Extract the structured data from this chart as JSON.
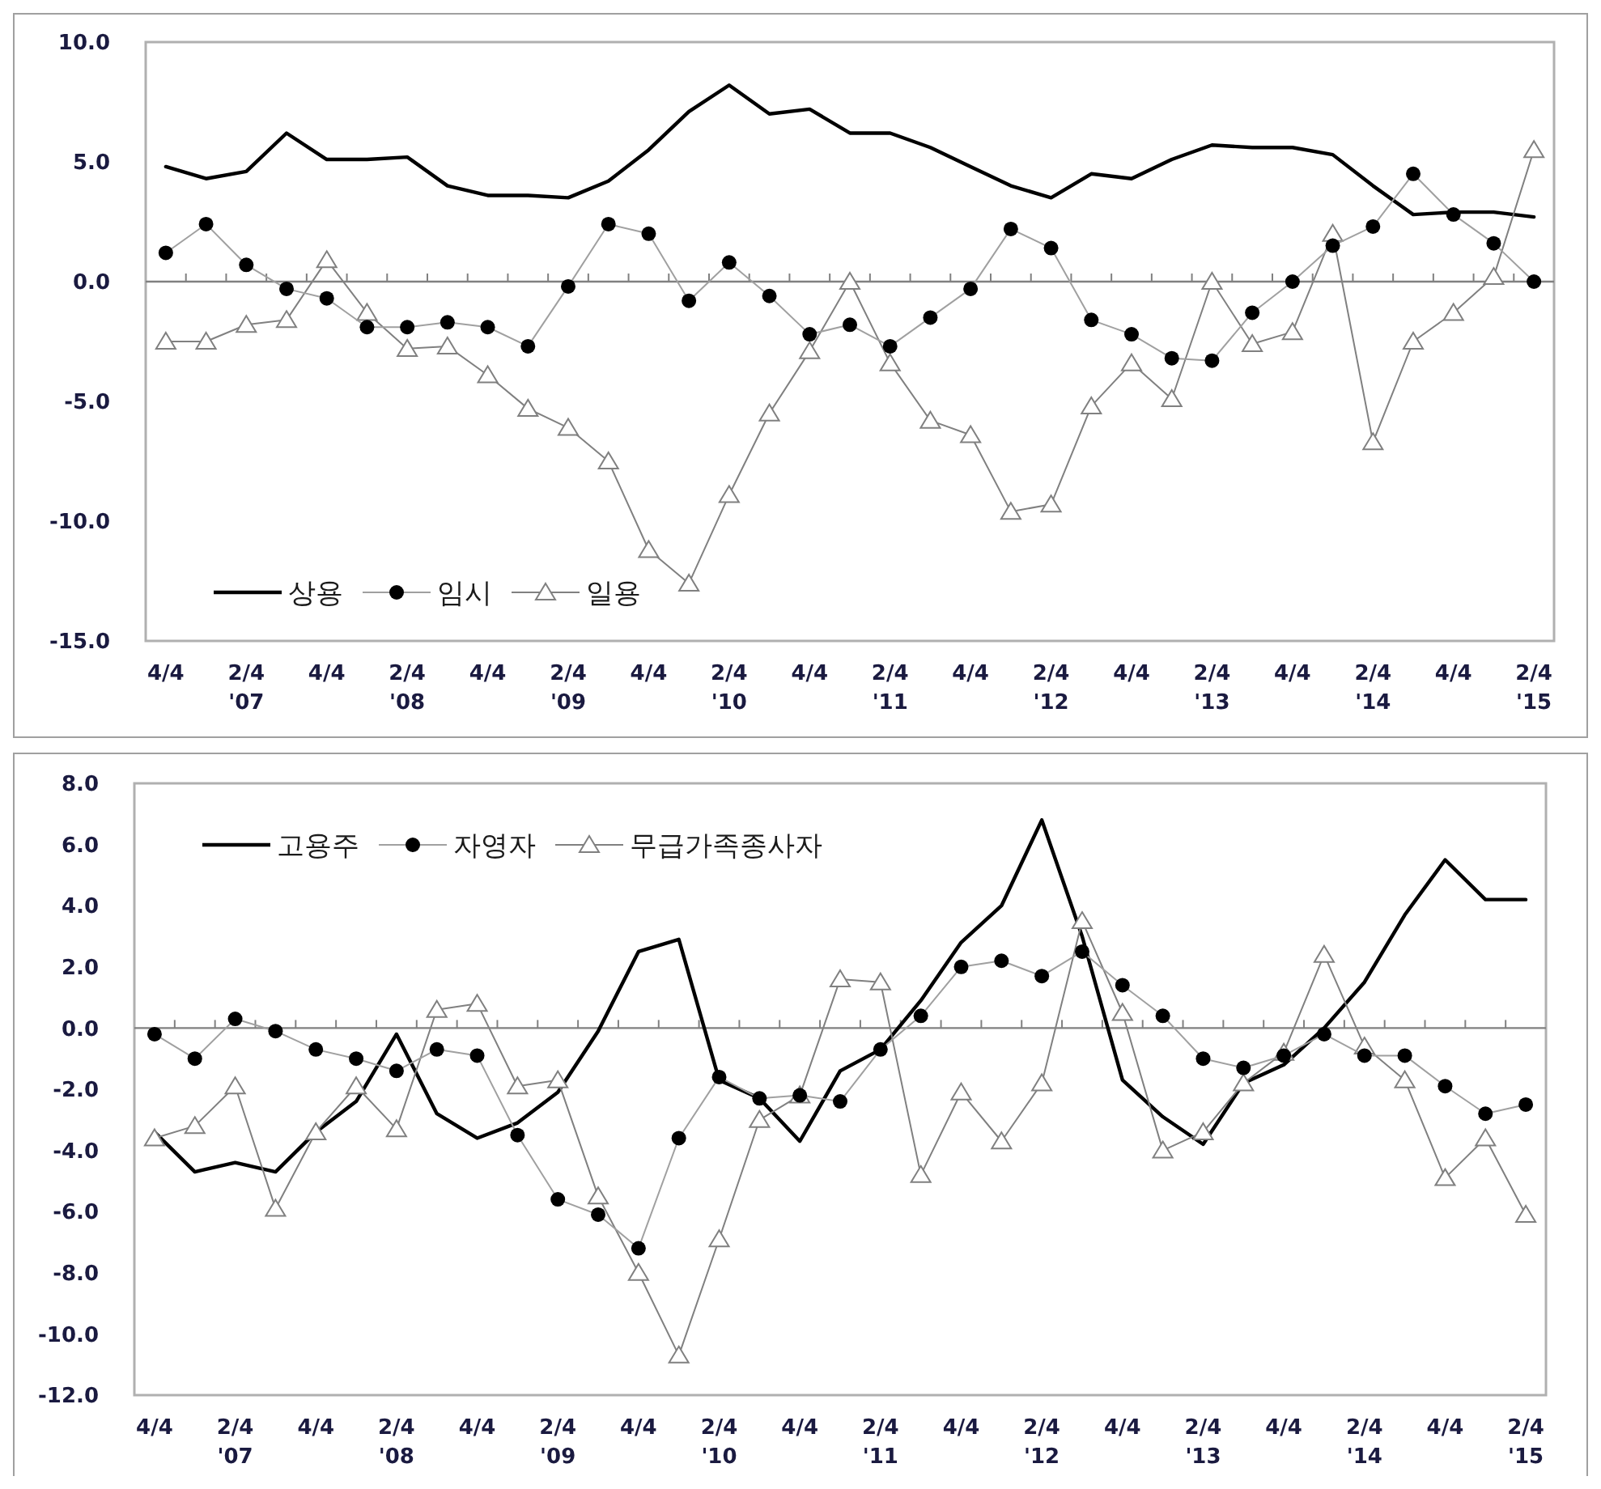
{
  "chart_data": [
    {
      "type": "line",
      "categories": [
        "4/4",
        null,
        "2/4\n'07",
        null,
        "4/4",
        null,
        "2/4\n'08",
        null,
        "4/4",
        null,
        "2/4\n'09",
        null,
        "4/4",
        null,
        "2/4\n'10",
        null,
        "4/4",
        null,
        "2/4\n'11",
        null,
        "4/4",
        null,
        "2/4\n'12",
        null,
        "4/4",
        null,
        "2/4\n'13",
        null,
        "4/4",
        null,
        "2/4\n'14",
        null,
        "4/4",
        null,
        "2/4\n'15"
      ],
      "ylim": [
        -15,
        10
      ],
      "yticks": [
        {
          "value": -15,
          "label": "-15.0"
        },
        {
          "value": -10,
          "label": "-10.0"
        },
        {
          "value": -5,
          "label": "-5.0"
        },
        {
          "value": 0,
          "label": "0.0"
        },
        {
          "value": 5,
          "label": "5.0"
        },
        {
          "value": 10,
          "label": "10.0"
        }
      ],
      "grid": false,
      "legend": "bottom left",
      "ref_lines": [
        {
          "axis": "y",
          "value": 0
        }
      ],
      "series": [
        {
          "name": "상용",
          "color": "#000000",
          "marker": "none",
          "values": [
            4.8,
            4.3,
            4.6,
            6.2,
            5.1,
            5.1,
            5.2,
            4.0,
            3.6,
            3.6,
            3.5,
            4.2,
            5.5,
            7.1,
            8.2,
            7.0,
            7.2,
            6.2,
            6.2,
            5.6,
            4.8,
            4.0,
            3.5,
            4.5,
            4.3,
            5.1,
            5.7,
            5.6,
            5.6,
            5.3,
            4.0,
            2.8,
            2.9,
            2.9,
            2.7
          ]
        },
        {
          "name": "임시",
          "color": "#000000",
          "marker": "circle",
          "values": [
            1.2,
            2.4,
            0.7,
            -0.3,
            -0.7,
            -1.9,
            -1.9,
            -1.7,
            -1.9,
            -2.7,
            -0.2,
            2.4,
            2.0,
            -0.8,
            0.8,
            -0.6,
            -2.2,
            -1.8,
            -2.7,
            -1.5,
            -0.3,
            2.2,
            1.4,
            -1.6,
            -2.2,
            -3.2,
            -3.3,
            -1.3,
            0.0,
            1.5,
            2.3,
            4.5,
            2.8,
            1.6,
            0.0
          ]
        },
        {
          "name": "일용",
          "color": "#808080",
          "marker": "triangle",
          "values": [
            -2.5,
            -2.5,
            -1.8,
            -1.6,
            0.9,
            -1.3,
            -2.8,
            -2.7,
            -3.9,
            -5.3,
            -6.1,
            -7.5,
            -11.2,
            -12.6,
            -8.9,
            -5.5,
            -2.9,
            0.0,
            -3.4,
            -5.8,
            -6.4,
            -9.6,
            -9.3,
            -5.2,
            -3.4,
            -4.9,
            0.0,
            -2.6,
            -2.1,
            2.0,
            -6.7,
            -2.5,
            -1.3,
            0.2,
            5.5
          ]
        }
      ]
    },
    {
      "type": "line",
      "categories": [
        "4/4",
        null,
        "2/4\n'07",
        null,
        "4/4",
        null,
        "2/4\n'08",
        null,
        "4/4",
        null,
        "2/4\n'09",
        null,
        "4/4",
        null,
        "2/4\n'10",
        null,
        "4/4",
        null,
        "2/4\n'11",
        null,
        "4/4",
        null,
        "2/4\n'12",
        null,
        "4/4",
        null,
        "2/4\n'13",
        null,
        "4/4",
        null,
        "2/4\n'14",
        null,
        "4/4",
        null,
        "2/4\n'15"
      ],
      "ylim": [
        -12,
        8
      ],
      "yticks": [
        {
          "value": -12,
          "label": "-12.0"
        },
        {
          "value": -10,
          "label": "-10.0"
        },
        {
          "value": -8,
          "label": "-8.0"
        },
        {
          "value": -6,
          "label": "-6.0"
        },
        {
          "value": -4,
          "label": "-4.0"
        },
        {
          "value": -2,
          "label": "-2.0"
        },
        {
          "value": 0,
          "label": "0.0"
        },
        {
          "value": 2,
          "label": "2.0"
        },
        {
          "value": 4,
          "label": "4.0"
        },
        {
          "value": 6,
          "label": "6.0"
        },
        {
          "value": 8,
          "label": "8.0"
        }
      ],
      "grid": false,
      "legend": "top left",
      "ref_lines": [
        {
          "axis": "y",
          "value": 0
        }
      ],
      "series": [
        {
          "name": "고용주",
          "color": "#000000",
          "marker": "none",
          "values": [
            -3.4,
            -4.7,
            -4.4,
            -4.7,
            -3.4,
            -2.4,
            -0.2,
            -2.8,
            -3.6,
            -3.1,
            -2.1,
            -0.1,
            2.5,
            2.9,
            -1.7,
            -2.3,
            -3.7,
            -1.4,
            -0.7,
            0.9,
            2.8,
            4.0,
            6.8,
            3.0,
            -1.7,
            -2.9,
            -3.8,
            -1.8,
            -1.2,
            0.0,
            1.5,
            3.7,
            5.5,
            4.2,
            4.2
          ]
        },
        {
          "name": "자영자",
          "color": "#000000",
          "marker": "circle",
          "values": [
            -0.2,
            -1.0,
            0.3,
            -0.1,
            -0.7,
            -1.0,
            -1.4,
            -0.7,
            -0.9,
            -3.5,
            -5.6,
            -6.1,
            -7.2,
            -3.6,
            -1.6,
            -2.3,
            -2.2,
            -2.4,
            -0.7,
            0.4,
            2.0,
            2.2,
            1.7,
            2.5,
            1.4,
            0.4,
            -1.0,
            -1.3,
            -0.9,
            -0.2,
            -0.9,
            -0.9,
            -1.9,
            -2.8,
            -2.5
          ]
        },
        {
          "name": "무급가족종사자",
          "color": "#808080",
          "marker": "triangle",
          "values": [
            -3.6,
            -3.2,
            -1.9,
            -5.9,
            -3.4,
            -1.9,
            -3.3,
            0.6,
            0.8,
            -1.9,
            -1.7,
            -5.5,
            -8.0,
            -10.7,
            -6.9,
            -3.0,
            -2.2,
            1.6,
            1.5,
            -4.8,
            -2.1,
            -3.7,
            -1.8,
            3.5,
            0.5,
            -4.0,
            -3.4,
            -1.8,
            -0.8,
            2.4,
            -0.6,
            -1.7,
            -4.9,
            -3.6,
            -6.1
          ]
        }
      ]
    }
  ]
}
